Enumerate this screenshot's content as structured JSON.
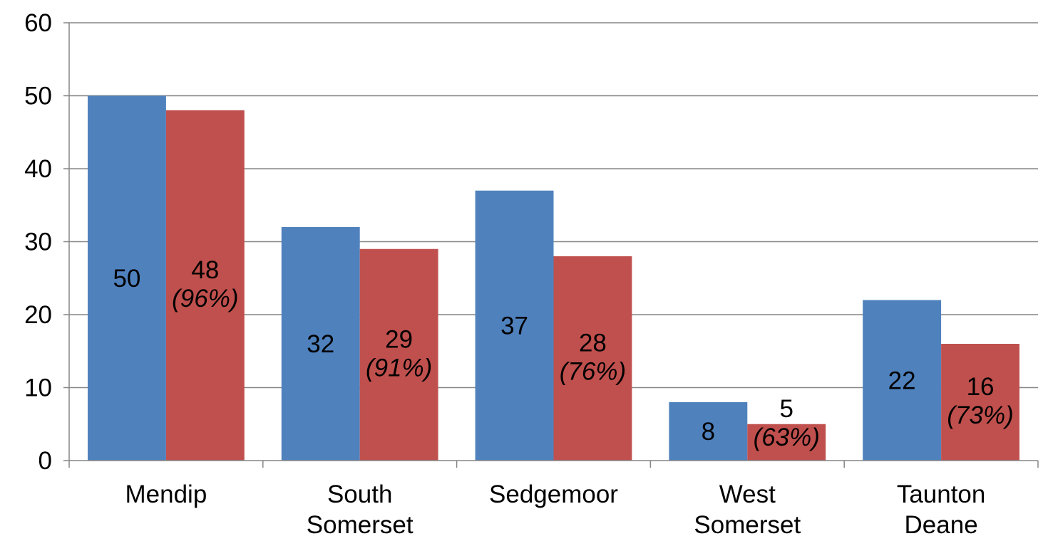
{
  "chart_data": {
    "type": "bar",
    "title": "",
    "xlabel": "",
    "ylabel": "",
    "categories": [
      [
        "Mendip"
      ],
      [
        "South",
        "Somerset"
      ],
      [
        "Sedgemoor"
      ],
      [
        "West",
        "Somerset"
      ],
      [
        "Taunton",
        "Deane"
      ]
    ],
    "ylim": [
      0,
      60
    ],
    "yticks": [
      0,
      10,
      20,
      30,
      40,
      50,
      60
    ],
    "grid": true,
    "series": [
      {
        "color": "#4F81BD",
        "values": [
          50,
          32,
          37,
          8,
          22
        ],
        "labels": [
          "50",
          "32",
          "37",
          "8",
          "22"
        ]
      },
      {
        "color": "#C0504D",
        "values": [
          48,
          29,
          28,
          5,
          16
        ],
        "labels": [
          "48",
          "29",
          "28",
          "5",
          "16"
        ],
        "percent_labels": [
          "(96%)",
          "(91%)",
          "(76%)",
          "(63%)",
          "(73%)"
        ]
      }
    ]
  }
}
